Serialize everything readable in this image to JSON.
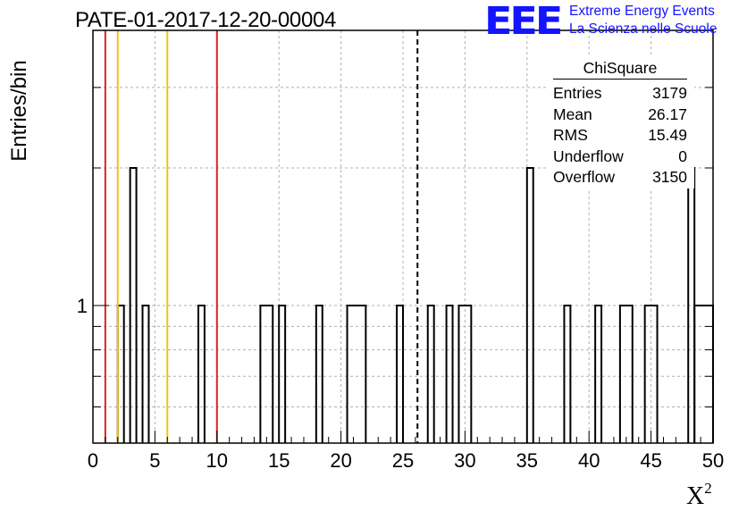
{
  "header": {
    "title": "PATE-01-2017-12-20-00004",
    "logo_text": "EEE",
    "org_line1": "Extreme Energy Events",
    "org_line2": "La Scienza nelle Scuole",
    "logo_color": "#1414ff"
  },
  "chart_data": {
    "type": "histogram",
    "title": "PATE-01-2017-12-20-00004",
    "xlabel": "X",
    "xlabel_exponent": "2",
    "ylabel": "Entries/bin",
    "xlim": [
      0,
      50
    ],
    "bin_width": 0.5,
    "y_scale": "log",
    "ylim": [
      0.5,
      4
    ],
    "grid": true,
    "x_ticks": [
      "0",
      "5",
      "10",
      "15",
      "20",
      "25",
      "30",
      "35",
      "40",
      "45",
      "50"
    ],
    "y_tick_labels": [
      "1"
    ],
    "bins": [
      {
        "x0": 2.0,
        "x1": 2.5,
        "count": 1
      },
      {
        "x0": 3.0,
        "x1": 3.5,
        "count": 2
      },
      {
        "x0": 4.0,
        "x1": 4.5,
        "count": 1
      },
      {
        "x0": 8.5,
        "x1": 9.0,
        "count": 1
      },
      {
        "x0": 13.5,
        "x1": 14.5,
        "count": 1
      },
      {
        "x0": 15.0,
        "x1": 15.5,
        "count": 1
      },
      {
        "x0": 18.0,
        "x1": 18.5,
        "count": 1
      },
      {
        "x0": 20.5,
        "x1": 22.0,
        "count": 1
      },
      {
        "x0": 24.5,
        "x1": 25.0,
        "count": 1
      },
      {
        "x0": 27.0,
        "x1": 27.5,
        "count": 1
      },
      {
        "x0": 28.5,
        "x1": 29.0,
        "count": 1
      },
      {
        "x0": 29.5,
        "x1": 30.5,
        "count": 1
      },
      {
        "x0": 35.0,
        "x1": 35.5,
        "count": 2
      },
      {
        "x0": 38.0,
        "x1": 38.5,
        "count": 1
      },
      {
        "x0": 40.5,
        "x1": 41.0,
        "count": 1
      },
      {
        "x0": 42.5,
        "x1": 43.5,
        "count": 1
      },
      {
        "x0": 44.5,
        "x1": 45.5,
        "count": 1
      },
      {
        "x0": 48.0,
        "x1": 48.5,
        "count": 2
      },
      {
        "x0": 48.5,
        "x1": 50.0,
        "count": 1
      }
    ],
    "vertical_lines": [
      {
        "x": 1.0,
        "color": "#dd2222",
        "style": "solid"
      },
      {
        "x": 2.0,
        "color": "#f0c020",
        "style": "solid"
      },
      {
        "x": 6.0,
        "color": "#f0c020",
        "style": "solid"
      },
      {
        "x": 10.0,
        "color": "#dd2222",
        "style": "solid"
      },
      {
        "x": 26.17,
        "color": "#000000",
        "style": "dashed"
      }
    ],
    "stats_box": {
      "title": "ChiSquare",
      "rows": [
        {
          "label": "Entries",
          "value": "3179"
        },
        {
          "label": "Mean",
          "value": "26.17"
        },
        {
          "label": "RMS",
          "value": "15.49"
        },
        {
          "label": "Underflow",
          "value": "0"
        },
        {
          "label": "Overflow",
          "value": "3150"
        }
      ]
    }
  }
}
